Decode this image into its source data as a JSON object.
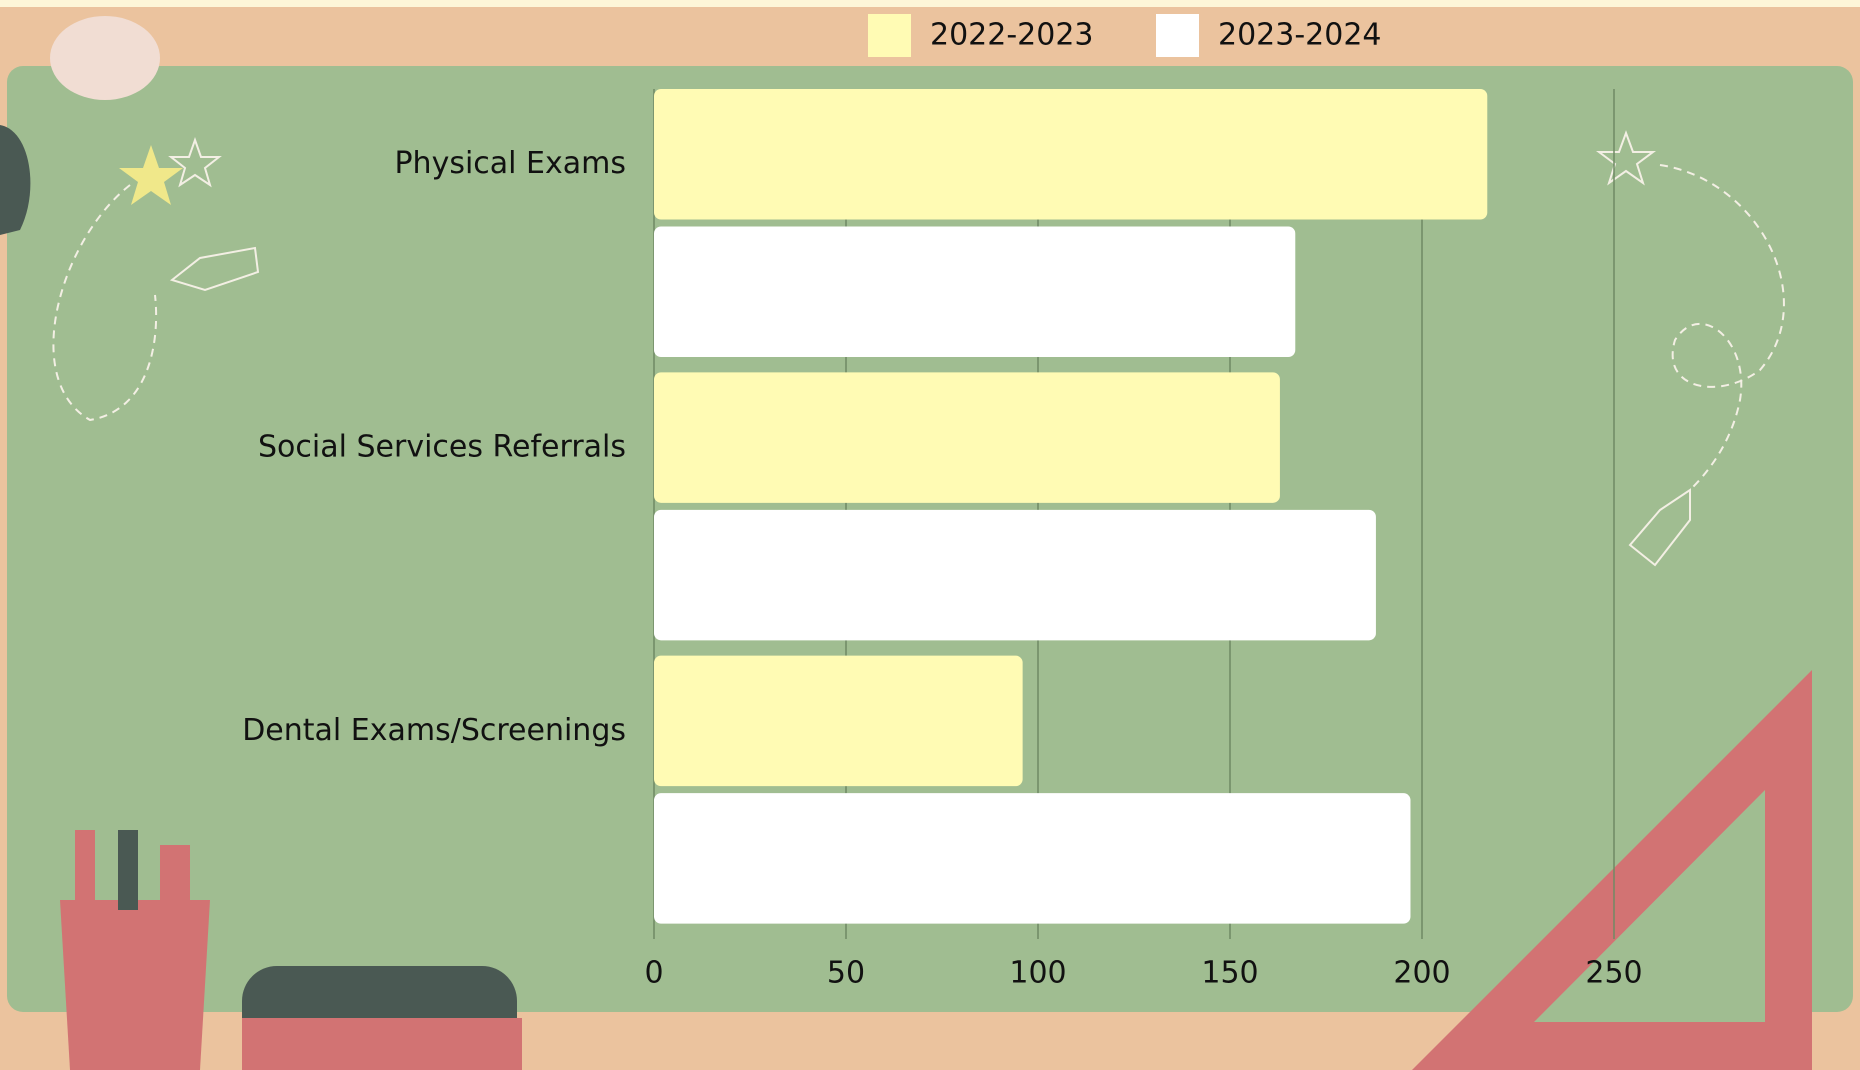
{
  "chart_data": {
    "type": "hbar",
    "categories": [
      "Physical Exams",
      "Social Services Referrals",
      "Dental Exams/Screenings"
    ],
    "series": [
      {
        "name": "2022-2023",
        "color": "#fffbb4",
        "values": [
          217,
          163,
          96
        ]
      },
      {
        "name": "2023-2024",
        "color": "#ffffff",
        "values": [
          167,
          188,
          197
        ]
      }
    ],
    "xlim": [
      0,
      250
    ],
    "xticks": [
      0,
      50,
      100,
      150,
      200,
      250
    ],
    "grid": true,
    "legend": "top"
  }
}
